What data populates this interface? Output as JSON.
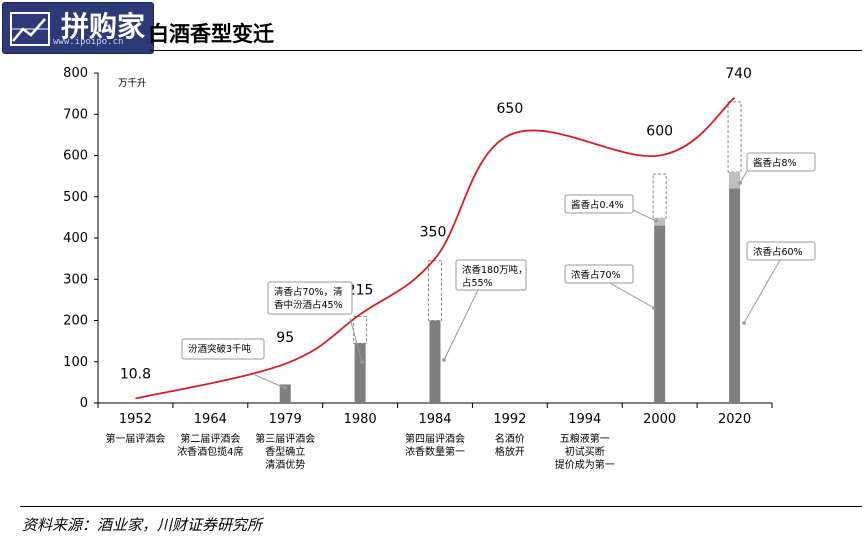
{
  "logo": {
    "text": "拼购家",
    "url": "www.ipoipo.cn"
  },
  "title": "白酒香型变迁",
  "source": "资料来源：酒业家，川财证券研究所",
  "chart_data": {
    "type": "bar+line",
    "unit_label": "万千升",
    "ylim": [
      0,
      800
    ],
    "yticks": [
      0,
      100,
      200,
      300,
      400,
      500,
      600,
      700,
      800
    ],
    "categories": [
      "1952",
      "1964",
      "1979",
      "1980",
      "1984",
      "1992",
      "1994",
      "2000",
      "2020"
    ],
    "events": [
      [
        "第一届评酒会"
      ],
      [
        "第二届评酒会",
        "浓香酒包揽4席"
      ],
      [
        "第三届评酒会",
        "香型确立",
        "清酒优势"
      ],
      [],
      [
        "第四届评酒会",
        "浓香数量第一"
      ],
      [
        "名酒价",
        "格放开"
      ],
      [
        "五粮液第一",
        "初试买断",
        "提价成为第一"
      ],
      [],
      []
    ],
    "series": [
      {
        "values": [
          10.8,
          null,
          95,
          215,
          350,
          650,
          null,
          600,
          740
        ]
      }
    ],
    "value_labels": [
      "10.8",
      null,
      "95",
      "215",
      "350",
      "650",
      null,
      "600",
      "740"
    ],
    "bars": [
      {
        "category": "1979",
        "value": 45
      },
      {
        "category": "1980",
        "value": 145,
        "total": 210
      },
      {
        "category": "1984",
        "value": 200,
        "total": 345
      },
      {
        "category": "2000",
        "value": 430,
        "top_value": 448,
        "total": 555
      },
      {
        "category": "2020",
        "value": 520,
        "top_value": 560,
        "total": 730
      }
    ],
    "colors": {
      "line": "#d42027",
      "bar": "#7f7f7f",
      "bar_top": "#bfbfbf"
    },
    "annotations": [
      {
        "lines": [
          "汾酒突破3千吨"
        ]
      },
      {
        "lines": [
          "清香占70%，清",
          "香中汾酒占45%"
        ]
      },
      {
        "lines": [
          "浓香180万吨，",
          "占55%"
        ]
      },
      {
        "lines": [
          "酱香占0.4%"
        ]
      },
      {
        "lines": [
          "浓香占70%"
        ]
      },
      {
        "lines": [
          "酱香占8%"
        ]
      },
      {
        "lines": [
          "浓香占60%"
        ]
      }
    ]
  }
}
